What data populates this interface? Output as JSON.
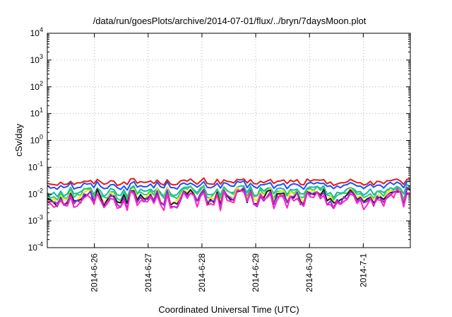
{
  "chart_data": {
    "type": "line",
    "title": "/data/run/goesPlots/archive/2014-07-01/flux/../bryn/7daysMoon.plot",
    "xlabel": "Coordinated Universal Time (UTC)",
    "ylabel": "cSv/day",
    "y_scale": "log",
    "ylim": [
      0.0001,
      10000
    ],
    "y_ticks": [
      {
        "value": 0.0001,
        "base": "10",
        "exp": "-4"
      },
      {
        "value": 0.001,
        "base": "10",
        "exp": "-3"
      },
      {
        "value": 0.01,
        "base": "10",
        "exp": "-2"
      },
      {
        "value": 0.1,
        "base": "10",
        "exp": "-1"
      },
      {
        "value": 1,
        "base": "10",
        "exp": "0"
      },
      {
        "value": 10,
        "base": "10",
        "exp": "1"
      },
      {
        "value": 100,
        "base": "10",
        "exp": "2"
      },
      {
        "value": 1000,
        "base": "10",
        "exp": "3"
      },
      {
        "value": 10000,
        "base": "10",
        "exp": "4"
      }
    ],
    "xlim": [
      "2014-06-25 03:00",
      "2014-07-01 21:00"
    ],
    "x_ticks": [
      "2014-6-26",
      "2014-6-27",
      "2014-6-28",
      "2014-6-29",
      "2014-6-30",
      "2014-7-1"
    ],
    "grid": true,
    "series": [
      {
        "color": "#e41a1c",
        "base": 0.028,
        "amp": 0.12,
        "x": [
          "2014-06-25 03:00",
          "2014-07-01 21:00"
        ]
      },
      {
        "color": "#1f4fff",
        "base": 0.021,
        "amp": 0.14,
        "x": [
          "2014-06-25 03:00",
          "2014-07-01 21:00"
        ]
      },
      {
        "color": "#19b8a6",
        "base": 0.013,
        "amp": 0.2,
        "x": [
          "2014-06-25 03:00",
          "2014-07-01 21:00"
        ]
      },
      {
        "color": "#2ecc71",
        "base": 0.011,
        "amp": 0.24,
        "x": [
          "2014-06-25 03:00",
          "2014-07-01 21:00"
        ]
      },
      {
        "color": "#f2e51b",
        "base": 0.0085,
        "amp": 0.28,
        "x": [
          "2014-06-25 03:00",
          "2014-07-01 21:00"
        ]
      },
      {
        "color": "#1a1a1a",
        "base": 0.0075,
        "amp": 0.3,
        "x": [
          "2014-06-25 03:00",
          "2014-07-01 21:00"
        ]
      },
      {
        "color": "#8a2be2",
        "base": 0.0068,
        "amp": 0.32,
        "x": [
          "2014-06-25 03:00",
          "2014-07-01 21:00"
        ]
      },
      {
        "color": "#ff22cc",
        "base": 0.0058,
        "amp": 0.34,
        "x": [
          "2014-06-25 03:00",
          "2014-07-01 21:00"
        ]
      }
    ]
  }
}
